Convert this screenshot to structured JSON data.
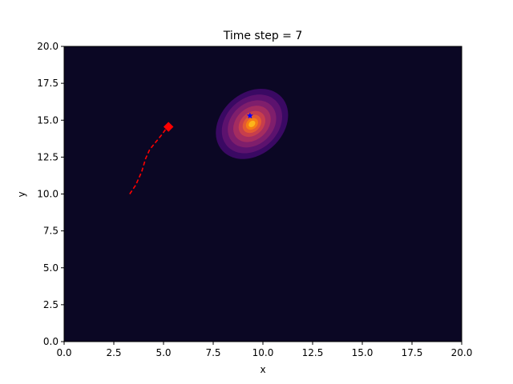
{
  "chart_data": {
    "type": "contour",
    "title": "Time step = 7",
    "xlabel": "x",
    "ylabel": "y",
    "xlim": [
      0,
      20
    ],
    "ylim": [
      0,
      20
    ],
    "xticks": [
      "0.0",
      "2.5",
      "5.0",
      "7.5",
      "10.0",
      "12.5",
      "15.0",
      "17.5",
      "20.0"
    ],
    "yticks": [
      "0.0",
      "2.5",
      "5.0",
      "7.5",
      "10.0",
      "12.5",
      "15.0",
      "17.5",
      "20.0"
    ],
    "grid": false,
    "colormap": "inferno",
    "background_color": "#0b0724",
    "density": {
      "center": [
        9.45,
        14.75
      ],
      "orientation_deg": -48,
      "levels": [
        {
          "a": 2.7,
          "b": 1.55,
          "color": "#3a0963"
        },
        {
          "a": 2.25,
          "b": 1.3,
          "color": "#5c126e"
        },
        {
          "a": 1.8,
          "b": 1.05,
          "color": "#7f1e6c"
        },
        {
          "a": 1.4,
          "b": 0.8,
          "color": "#a42c60"
        },
        {
          "a": 1.0,
          "b": 0.57,
          "color": "#c73e4c"
        },
        {
          "a": 0.7,
          "b": 0.4,
          "color": "#e35933"
        },
        {
          "a": 0.45,
          "b": 0.26,
          "color": "#f57d15"
        },
        {
          "a": 0.25,
          "b": 0.14,
          "color": "#fbb61a"
        }
      ]
    },
    "trajectory": {
      "style": "dashed",
      "color": "#ff0000",
      "x": [
        3.3,
        3.6,
        3.9,
        4.1,
        4.3,
        4.6,
        4.9,
        5.2
      ],
      "y": [
        10.0,
        10.6,
        11.5,
        12.4,
        13.0,
        13.5,
        14.0,
        14.55
      ]
    },
    "current_position": {
      "x": 5.25,
      "y": 14.55,
      "marker": "diamond",
      "color": "#ff0000"
    },
    "estimate": {
      "x": 9.35,
      "y": 15.3,
      "marker": "star",
      "color": "#0000ff"
    }
  }
}
